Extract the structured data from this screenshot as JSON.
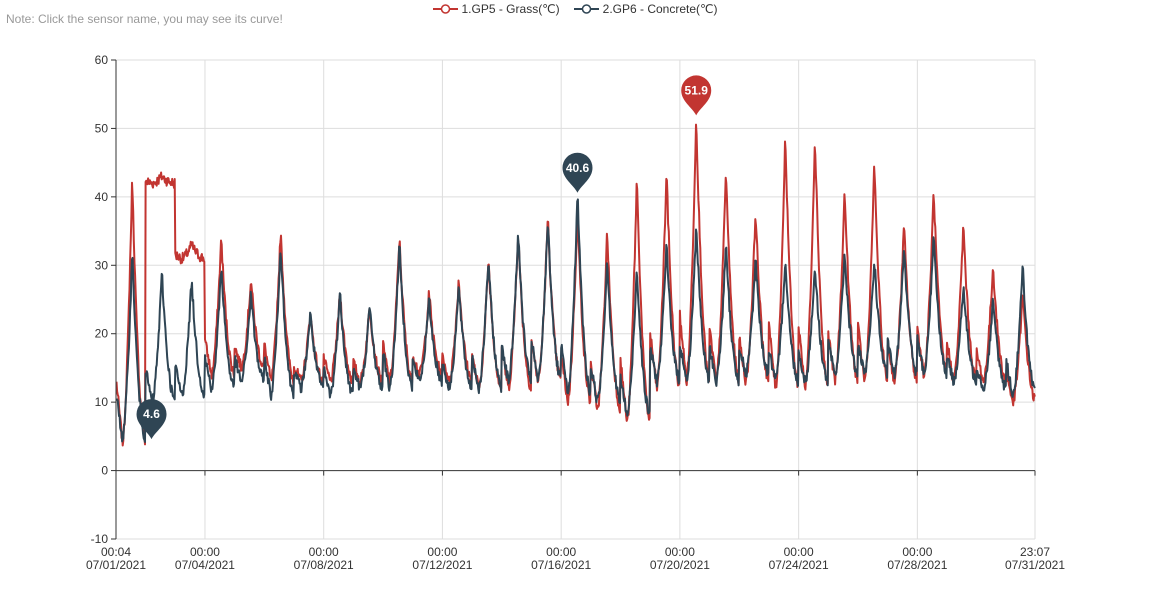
{
  "note": "Note: Click the sensor name, you may see its curve!",
  "chart_data": {
    "type": "line",
    "ylim": [
      -10,
      60
    ],
    "yticks": [
      -10,
      0,
      10,
      20,
      30,
      40,
      50,
      60
    ],
    "xlim_day": [
      0.003,
      30.963
    ],
    "xticks": [
      {
        "day": 0.003,
        "time": "00:04",
        "date": "07/01/2021"
      },
      {
        "day": 3,
        "time": "00:00",
        "date": "07/04/2021"
      },
      {
        "day": 7,
        "time": "00:00",
        "date": "07/08/2021"
      },
      {
        "day": 11,
        "time": "00:00",
        "date": "07/12/2021"
      },
      {
        "day": 15,
        "time": "00:00",
        "date": "07/16/2021"
      },
      {
        "day": 19,
        "time": "00:00",
        "date": "07/20/2021"
      },
      {
        "day": 23,
        "time": "00:00",
        "date": "07/24/2021"
      },
      {
        "day": 27,
        "time": "00:00",
        "date": "07/28/2021"
      },
      {
        "day": 30.963,
        "time": "23:07",
        "date": "07/31/2021"
      }
    ],
    "grid": true,
    "legend_position": "top-center",
    "series": [
      {
        "name": "1.GP5 - Grass(℃)",
        "color": "#c23531",
        "max_label": "51.9",
        "min": [
          4,
          42,
          31,
          14,
          15,
          13,
          13,
          13,
          13,
          13,
          14,
          13,
          12,
          12,
          13,
          10,
          9,
          7,
          12,
          13,
          13,
          13,
          12,
          12,
          13,
          13,
          13,
          14,
          13,
          13,
          10
        ],
        "max": [
          43,
          43,
          33,
          34,
          28,
          35,
          23,
          26,
          24,
          34,
          26,
          28,
          31,
          35,
          37,
          38,
          35,
          43,
          44,
          52,
          44,
          38,
          49,
          49,
          41,
          45,
          36,
          41,
          36,
          30,
          26
        ]
      },
      {
        "name": "2.GP6 - Concrete(℃)",
        "color": "#2f4554",
        "max_label": "40.6",
        "min_label": "4.6",
        "min": [
          4.6,
          10,
          11,
          12,
          13,
          11,
          12,
          11,
          12,
          12,
          13,
          12,
          12,
          13,
          13,
          11,
          10,
          8,
          13,
          13,
          13,
          14,
          13,
          13,
          14,
          14,
          14,
          14,
          13,
          12,
          11
        ],
        "max": [
          32,
          29,
          28,
          30,
          26,
          33,
          23,
          26,
          24,
          33,
          25,
          27,
          31,
          35,
          37,
          40.6,
          31,
          30,
          33,
          36,
          33,
          31,
          31,
          30,
          32,
          31,
          33,
          35,
          27,
          25,
          30
        ]
      }
    ]
  }
}
